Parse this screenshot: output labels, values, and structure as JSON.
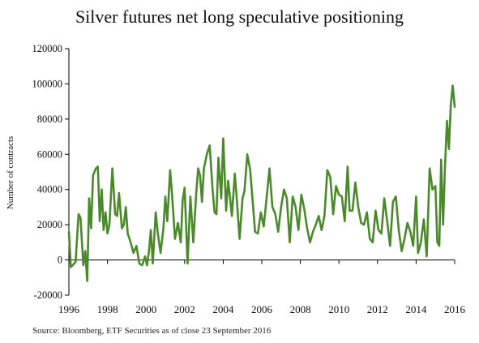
{
  "chart_data": {
    "type": "line",
    "title": "Silver futures net long speculative positioning",
    "ylabel": "Number of contracts",
    "xlabel": "",
    "source": "Source: Bloomberg, ETF Securities as of close 23 September 2016",
    "xlim": [
      1996,
      2016
    ],
    "ylim": [
      -20000,
      120000
    ],
    "yticks": [
      -20000,
      0,
      20000,
      40000,
      60000,
      80000,
      100000,
      120000
    ],
    "ytick_labels": [
      "-20000",
      "0",
      "20000",
      "40000",
      "60000",
      "80000",
      "100000",
      "120000"
    ],
    "xticks": [
      1996,
      1998,
      2000,
      2002,
      2004,
      2006,
      2008,
      2010,
      2012,
      2014,
      2016
    ],
    "xtick_labels": [
      "1996",
      "1998",
      "2000",
      "2002",
      "2004",
      "2006",
      "2008",
      "2010",
      "2012",
      "2014",
      "2016"
    ],
    "grid": false,
    "series": [
      {
        "name": "",
        "color": "#4a8a2a",
        "x": [
          1996.0,
          1996.1,
          1996.2,
          1996.35,
          1996.5,
          1996.6,
          1996.75,
          1996.85,
          1996.95,
          1997.05,
          1997.15,
          1997.25,
          1997.4,
          1997.5,
          1997.6,
          1997.7,
          1997.8,
          1997.9,
          1998.0,
          1998.1,
          1998.25,
          1998.4,
          1998.5,
          1998.6,
          1998.75,
          1998.85,
          1998.95,
          1999.05,
          1999.2,
          1999.35,
          1999.5,
          1999.65,
          1999.8,
          1999.95,
          2000.05,
          2000.15,
          2000.25,
          2000.35,
          2000.5,
          2000.6,
          2000.75,
          2000.9,
          2001.0,
          2001.1,
          2001.25,
          2001.35,
          2001.5,
          2001.65,
          2001.8,
          2001.9,
          2002.0,
          2002.15,
          2002.3,
          2002.45,
          2002.6,
          2002.7,
          2002.8,
          2002.9,
          2003.0,
          2003.15,
          2003.3,
          2003.45,
          2003.55,
          2003.65,
          2003.75,
          2003.9,
          2004.0,
          2004.15,
          2004.25,
          2004.35,
          2004.45,
          2004.6,
          2004.7,
          2004.85,
          2005.0,
          2005.1,
          2005.25,
          2005.4,
          2005.55,
          2005.65,
          2005.8,
          2005.95,
          2006.1,
          2006.25,
          2006.4,
          2006.55,
          2006.7,
          2006.85,
          2007.0,
          2007.15,
          2007.3,
          2007.45,
          2007.6,
          2007.75,
          2007.9,
          2008.05,
          2008.2,
          2008.35,
          2008.5,
          2008.65,
          2008.8,
          2008.95,
          2009.1,
          2009.25,
          2009.4,
          2009.55,
          2009.7,
          2009.85,
          2010.0,
          2010.15,
          2010.3,
          2010.45,
          2010.55,
          2010.7,
          2010.85,
          2011.0,
          2011.15,
          2011.3,
          2011.45,
          2011.6,
          2011.75,
          2011.9,
          2012.05,
          2012.2,
          2012.35,
          2012.5,
          2012.65,
          2012.8,
          2012.95,
          2013.1,
          2013.25,
          2013.4,
          2013.55,
          2013.7,
          2013.85,
          2014.0,
          2014.1,
          2014.25,
          2014.4,
          2014.55,
          2014.7,
          2014.85,
          2015.0,
          2015.1,
          2015.2,
          2015.3,
          2015.4,
          2015.5,
          2015.6,
          2015.7,
          2015.8,
          2015.9,
          2016.0
        ],
        "y": [
          16000,
          -4000,
          -3000,
          -1000,
          26000,
          24000,
          -3000,
          5000,
          -12000,
          35000,
          18000,
          48000,
          52000,
          53000,
          22000,
          40000,
          17000,
          27000,
          15000,
          20000,
          52000,
          26000,
          25000,
          38000,
          18000,
          20000,
          30000,
          15000,
          10000,
          4000,
          8000,
          -2000,
          -3000,
          2000,
          -3000,
          5000,
          17000,
          -2000,
          27000,
          16000,
          4000,
          18000,
          36000,
          22000,
          51000,
          37000,
          12000,
          21000,
          10000,
          34000,
          41000,
          -2000,
          36000,
          10000,
          38000,
          52000,
          48000,
          33000,
          52000,
          60000,
          65000,
          40000,
          27000,
          26000,
          58000,
          35000,
          69000,
          28000,
          45000,
          36000,
          25000,
          49000,
          35000,
          12000,
          35000,
          39000,
          60000,
          51000,
          30000,
          16000,
          15000,
          27000,
          19000,
          35000,
          52000,
          30000,
          26000,
          16000,
          30000,
          40000,
          35000,
          10000,
          36000,
          30000,
          17000,
          37000,
          29000,
          18000,
          10000,
          16000,
          20000,
          25000,
          17000,
          25000,
          51000,
          47000,
          26000,
          42000,
          37000,
          36000,
          22000,
          53000,
          28000,
          28000,
          44000,
          30000,
          21000,
          20000,
          27000,
          12000,
          10000,
          28000,
          17000,
          15000,
          35000,
          22000,
          8000,
          33000,
          36000,
          17000,
          5000,
          12000,
          21000,
          16000,
          8000,
          36000,
          4000,
          10000,
          23000,
          2000,
          52000,
          40000,
          42000,
          10000,
          8000,
          57000,
          20000,
          54000,
          79000,
          63000,
          88000,
          99000,
          87000
        ]
      }
    ]
  }
}
